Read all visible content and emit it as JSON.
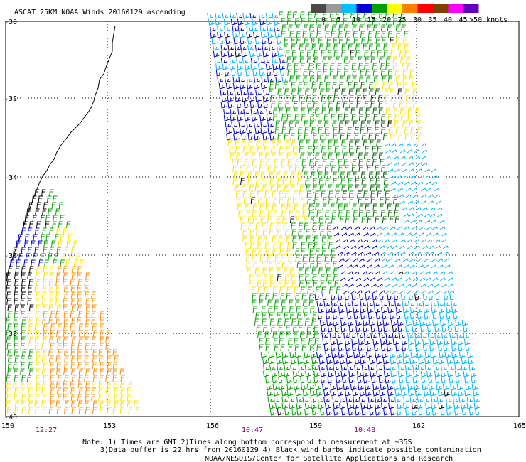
{
  "title": "ASCAT 25KM NOAA Winds 20160129 ascending",
  "legend": {
    "swatches": [
      {
        "label": "0",
        "color": "#4a4a4a"
      },
      {
        "label": "5",
        "color": "#999999"
      },
      {
        "label": "10",
        "color": "#00bfff"
      },
      {
        "label": "15",
        "color": "#0000d0"
      },
      {
        "label": "20",
        "color": "#00a000"
      },
      {
        "label": "25",
        "color": "#ffff00"
      },
      {
        "label": "30",
        "color": "#ff8000"
      },
      {
        "label": "35",
        "color": "#ff0000"
      },
      {
        "label": "40",
        "color": "#804000"
      },
      {
        "label": "45",
        "color": "#ff00ff"
      },
      {
        "label": ">50 knots",
        "color": "#6000c0"
      }
    ]
  },
  "axes": {
    "lat_labels": [
      "-30",
      "-32",
      "-34",
      "-36",
      "-38",
      "-40"
    ],
    "lon_labels": [
      "150",
      "153",
      "156",
      "159",
      "162",
      "165"
    ]
  },
  "pass_times": [
    "12:27",
    "10:47",
    "10:48"
  ],
  "notes": {
    "line1": "Note: 1) Times are GMT 2)Times along bottom correspond to measurement at ~35S",
    "line2": "3)Data buffer is 22 hrs from 20160129 4) Black wind barbs indicate possible contamination",
    "line3": "NOAA/NESDIS/Center for Satellite Applications and Research"
  }
}
